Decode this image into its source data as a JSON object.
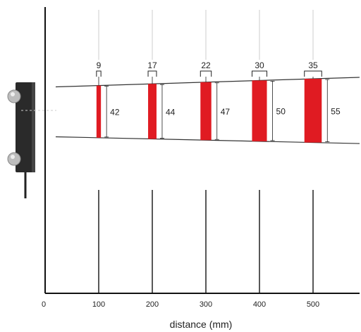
{
  "chart_data": {
    "type": "bar",
    "xlabel": "distance (mm)",
    "x_ticks": [
      "0",
      "100",
      "200",
      "300",
      "400",
      "500"
    ],
    "xlim": [
      0,
      585
    ],
    "series": [
      {
        "distance_mm": [
          100,
          200,
          300,
          400,
          500
        ],
        "spot_width_mm": [
          9,
          17,
          22,
          30,
          35
        ],
        "spot_height_mm": [
          42,
          44,
          47,
          50,
          55
        ]
      }
    ],
    "width_labels": [
      "9",
      "17",
      "22",
      "30",
      "35"
    ],
    "height_labels": [
      "42",
      "44",
      "47",
      "50",
      "55"
    ],
    "grid": false
  },
  "colors": {
    "spot": "#e01b22",
    "frame": "#111111",
    "beam": "#333333",
    "guide": "#cccccc",
    "sensor_body": "#2a2a2a",
    "sensor_lens": "#b8b8b8"
  },
  "icons": {
    "sensor": "photoelectric-sensor-icon"
  }
}
